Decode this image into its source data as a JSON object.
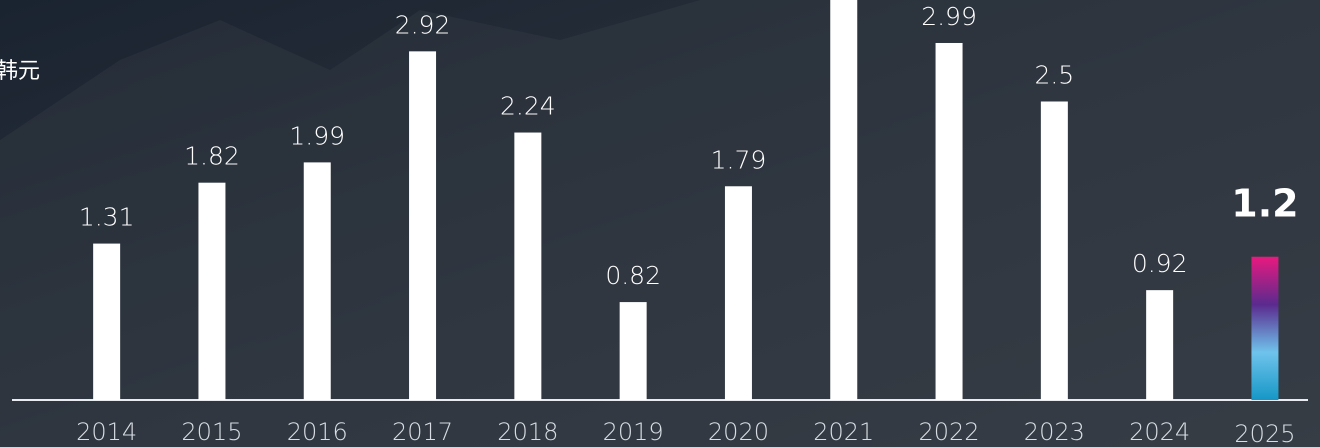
{
  "chart_data": {
    "type": "bar",
    "unit": "韩元",
    "categories": [
      "2014",
      "2015",
      "2016",
      "2017",
      "2018",
      "2019",
      "2020",
      "2021",
      "2022",
      "2023",
      "2024",
      "2025"
    ],
    "values": [
      1.31,
      1.82,
      1.99,
      2.92,
      2.24,
      0.82,
      1.79,
      3.5,
      2.99,
      2.5,
      0.92,
      1.2
    ],
    "value_labels": [
      "1.31",
      "1.82",
      "1.99",
      "2.92",
      "2.24",
      "0.82",
      "1.79",
      null,
      "2.99",
      "2.5",
      "0.92",
      "1.2"
    ],
    "color": "#ffffff",
    "highlight_gradient": [
      "#e8197f",
      "#5a2a8e",
      "#6fc3ec",
      "#1697c6"
    ],
    "ylim": [
      0,
      3.35
    ]
  }
}
